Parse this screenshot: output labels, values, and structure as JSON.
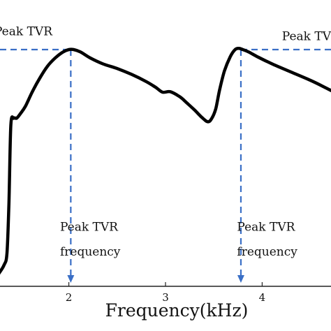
{
  "chart_data": {
    "type": "line",
    "title": "",
    "xlabel": "Frequency(kHz)",
    "ylabel": "",
    "xlim": [
      1.23,
      4.77
    ],
    "ylim": [
      0,
      1
    ],
    "x_ticks": [
      "2",
      "3",
      "4"
    ],
    "grid": false,
    "series": [
      {
        "x": [
          1.23,
          1.27,
          1.33,
          1.36,
          1.38,
          1.4,
          1.43,
          1.46,
          1.5,
          1.55,
          1.62,
          1.7,
          1.78,
          1.86,
          1.94,
          2.0,
          2.05,
          2.12,
          2.22,
          2.35,
          2.5,
          2.65,
          2.8,
          2.9,
          2.97,
          3.05,
          3.15,
          3.22,
          3.3,
          3.38,
          3.44,
          3.48,
          3.52,
          3.56,
          3.61,
          3.67,
          3.72,
          3.76,
          3.8,
          3.86,
          3.95,
          4.1,
          4.3,
          4.5,
          4.65,
          4.77
        ],
        "y": [
          0.02,
          0.05,
          0.09,
          0.14,
          0.35,
          0.68,
          0.71,
          0.71,
          0.73,
          0.76,
          0.82,
          0.88,
          0.93,
          0.965,
          0.99,
          1.0,
          1.0,
          0.99,
          0.965,
          0.94,
          0.92,
          0.895,
          0.865,
          0.84,
          0.82,
          0.822,
          0.8,
          0.775,
          0.745,
          0.712,
          0.695,
          0.71,
          0.75,
          0.83,
          0.91,
          0.97,
          1.0,
          1.005,
          1.0,
          0.99,
          0.97,
          0.94,
          0.905,
          0.87,
          0.84,
          0.815
        ]
      }
    ],
    "annotations": [
      {
        "text": "Peak TVR",
        "x": 1.23,
        "y": 1.06
      },
      {
        "text": "Peak TV",
        "x": 4.77,
        "y": 1.04
      },
      {
        "text": "Peak TVR",
        "x": 1.75,
        "y": 0.235
      },
      {
        "text": "frequency",
        "x": 1.75,
        "y": 0.13
      },
      {
        "text": "Peak TVR",
        "x": 3.87,
        "y": 0.235
      },
      {
        "text": "frequency",
        "x": 3.87,
        "y": 0.13
      }
    ],
    "peak_markers": [
      {
        "x": 2.02,
        "y": 1.0
      },
      {
        "x": 3.78,
        "y": 1.0
      }
    ]
  }
}
